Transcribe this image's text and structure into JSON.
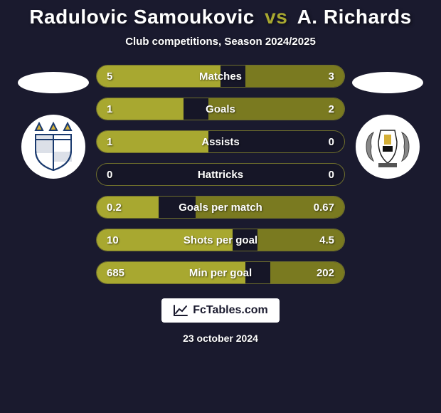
{
  "title": {
    "player1": "Radulovic Samoukovic",
    "vs": "vs",
    "player2": "A. Richards"
  },
  "subtitle": "Club competitions, Season 2024/2025",
  "colors": {
    "bar_left": "#a8a830",
    "bar_right": "#7a7a20",
    "background": "#1a1a2e"
  },
  "stats": [
    {
      "label": "Matches",
      "left_val": "5",
      "right_val": "3",
      "left_pct": 50,
      "right_pct": 40
    },
    {
      "label": "Goals",
      "left_val": "1",
      "right_val": "2",
      "left_pct": 35,
      "right_pct": 55
    },
    {
      "label": "Assists",
      "left_val": "1",
      "right_val": "0",
      "left_pct": 45,
      "right_pct": 0
    },
    {
      "label": "Hattricks",
      "left_val": "0",
      "right_val": "0",
      "left_pct": 0,
      "right_pct": 0
    },
    {
      "label": "Goals per match",
      "left_val": "0.2",
      "right_val": "0.67",
      "left_pct": 25,
      "right_pct": 60
    },
    {
      "label": "Shots per goal",
      "left_val": "10",
      "right_val": "4.5",
      "left_pct": 55,
      "right_pct": 35
    },
    {
      "label": "Min per goal",
      "left_val": "685",
      "right_val": "202",
      "left_pct": 60,
      "right_pct": 30
    }
  ],
  "footer": {
    "brand": "FcTables.com",
    "date": "23 october 2024"
  }
}
